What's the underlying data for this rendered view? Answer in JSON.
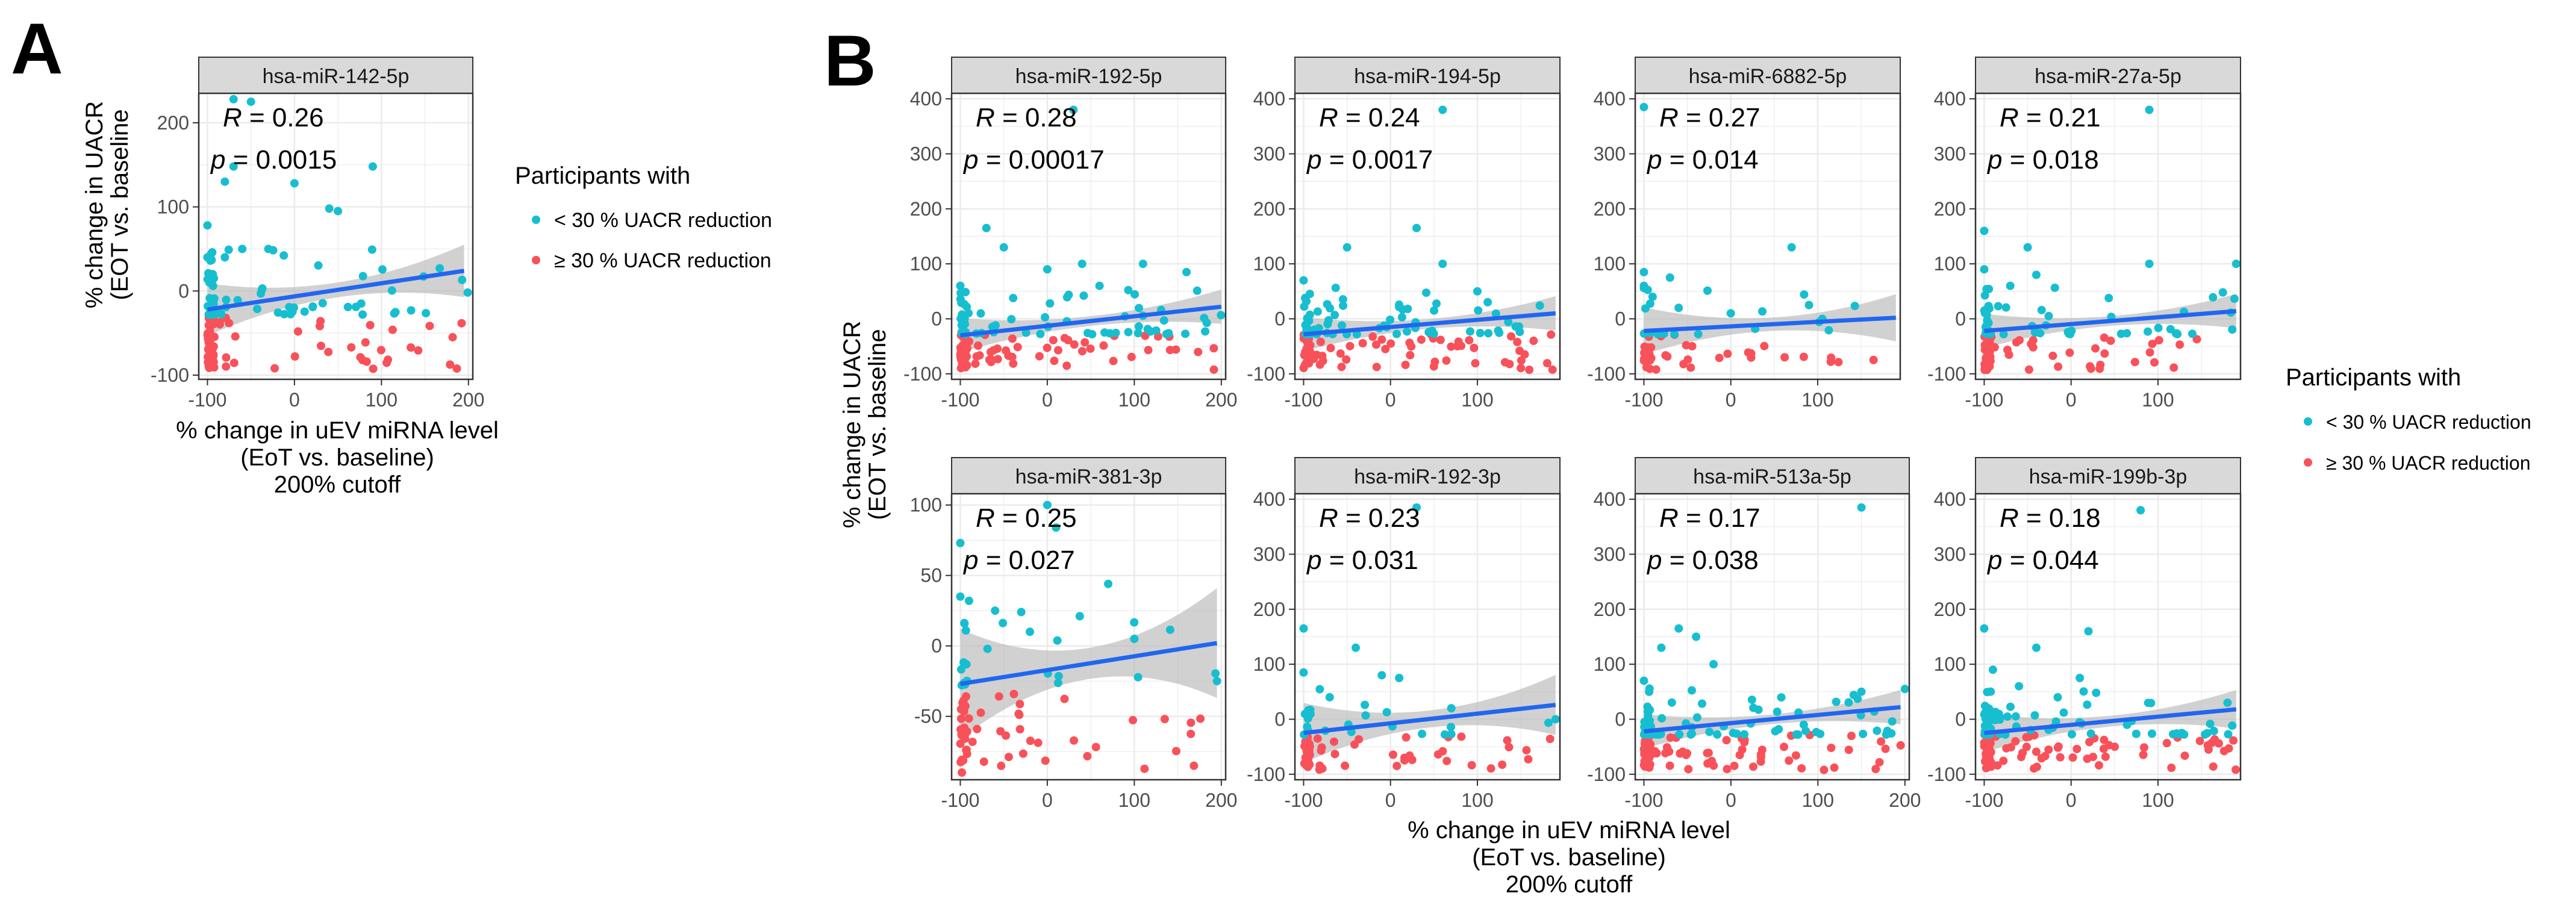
{
  "panel_labels": [
    "A",
    "B"
  ],
  "colors": {
    "low_reduction": "#17BECF",
    "high_reduction": "#F8515A",
    "fit_line": "#2166F0",
    "ci_band": "#B8B8B8",
    "strip_bg": "#D9D9D9",
    "grid": "#EBEBEB"
  },
  "panel_a": {
    "ylabel": "% change in UACR\n(EOT vs. baseline",
    "xlabel": "% change in uEV miRNA level\n(EoT vs. baseline)\n200% cutoff",
    "legend": {
      "title": "Participants with",
      "items": [
        "< 30 % UACR reduction",
        "≥ 30 % UACR reduction"
      ]
    }
  },
  "panel_b": {
    "ylabel": "% change in UACR\n(EOT vs. baseline",
    "xlabel": "% change in uEV miRNA level\n(EoT vs. baseline)\n200% cutoff",
    "legend": {
      "title": "Participants with",
      "items": [
        "< 30 % UACR reduction",
        "≥ 30 % UACR reduction"
      ]
    }
  },
  "chart_data": [
    {
      "type": "scatter",
      "panel": "A",
      "title": "hsa-miR-142-5p",
      "r_label": "R",
      "r_value": "= 0.26",
      "p_label": "p",
      "p_value": "= 0.0015",
      "xlim": [
        -110,
        205
      ],
      "ylim": [
        -105,
        235
      ],
      "xticks": [
        -100,
        0,
        100,
        200
      ],
      "yticks": [
        -100,
        0,
        100,
        200
      ],
      "fit": {
        "x": [
          -100,
          195
        ],
        "y": [
          -22,
          24
        ],
        "ci": 16
      },
      "n_low": 80,
      "n_high": 75,
      "low_points": [
        [
          -70,
          228
        ],
        [
          -50,
          225
        ],
        [
          -80,
          130
        ],
        [
          -70,
          148
        ],
        [
          -100,
          78
        ],
        [
          0,
          128
        ],
        [
          90,
          148
        ],
        [
          40,
          98
        ],
        [
          50,
          95
        ],
        [
          -100,
          40
        ],
        [
          -80,
          40
        ],
        [
          -60,
          50
        ],
        [
          -30,
          50
        ]
      ]
    },
    {
      "type": "scatter",
      "panel": "B",
      "title": "hsa-miR-192-5p",
      "r_label": "R",
      "r_value": "= 0.28",
      "p_label": "p",
      "p_value": "= 0.00017",
      "xlim": [
        -110,
        205
      ],
      "ylim": [
        -110,
        410
      ],
      "xticks": [
        -100,
        0,
        100,
        200
      ],
      "yticks": [
        -100,
        0,
        100,
        200,
        300,
        400
      ],
      "fit": {
        "x": [
          -100,
          200
        ],
        "y": [
          -30,
          22
        ],
        "ci": 16
      },
      "n_low": 75,
      "n_high": 80,
      "low_points": [
        [
          30,
          380
        ],
        [
          -70,
          165
        ],
        [
          -50,
          130
        ],
        [
          0,
          90
        ],
        [
          40,
          100
        ],
        [
          110,
          100
        ],
        [
          -100,
          60
        ],
        [
          60,
          60
        ],
        [
          160,
          85
        ]
      ]
    },
    {
      "type": "scatter",
      "panel": "B",
      "title": "hsa-miR-194-5p",
      "r_label": "R",
      "r_value": "= 0.24",
      "p_label": "p",
      "p_value": "= 0.0017",
      "xlim": [
        -110,
        195
      ],
      "ylim": [
        -110,
        410
      ],
      "xticks": [
        -100,
        0,
        100
      ],
      "yticks": [
        -100,
        0,
        100,
        200,
        300,
        400
      ],
      "fit": {
        "x": [
          -100,
          190
        ],
        "y": [
          -28,
          10
        ],
        "ci": 16
      },
      "n_low": 75,
      "n_high": 80,
      "low_points": [
        [
          60,
          380
        ],
        [
          30,
          165
        ],
        [
          -50,
          130
        ],
        [
          60,
          100
        ],
        [
          -100,
          70
        ],
        [
          100,
          50
        ]
      ]
    },
    {
      "type": "scatter",
      "panel": "B",
      "title": "hsa-miR-6882-5p",
      "r_label": "R",
      "r_value": "= 0.27",
      "p_label": "p",
      "p_value": "= 0.014",
      "xlim": [
        -110,
        195
      ],
      "ylim": [
        -110,
        410
      ],
      "xticks": [
        -100,
        0,
        100
      ],
      "yticks": [
        -100,
        0,
        100,
        200,
        300,
        400
      ],
      "fit": {
        "x": [
          -100,
          190
        ],
        "y": [
          -22,
          2
        ],
        "ci": 22
      },
      "n_low": 28,
      "n_high": 38,
      "low_points": [
        [
          -100,
          385
        ],
        [
          -100,
          85
        ],
        [
          -90,
          40
        ],
        [
          -70,
          75
        ],
        [
          70,
          130
        ],
        [
          -100,
          60
        ],
        [
          -60,
          20
        ],
        [
          0,
          10
        ],
        [
          90,
          25
        ]
      ]
    },
    {
      "type": "scatter",
      "panel": "B",
      "title": "hsa-miR-27a-5p",
      "r_label": "R",
      "r_value": "= 0.21",
      "p_label": "p",
      "p_value": "= 0.018",
      "xlim": [
        -110,
        195
      ],
      "ylim": [
        -110,
        410
      ],
      "xticks": [
        -100,
        0,
        100
      ],
      "yticks": [
        -100,
        0,
        100,
        200,
        300,
        400
      ],
      "fit": {
        "x": [
          -100,
          190
        ],
        "y": [
          -22,
          14
        ],
        "ci": 16
      },
      "n_low": 65,
      "n_high": 60,
      "low_points": [
        [
          90,
          380
        ],
        [
          -100,
          160
        ],
        [
          -50,
          130
        ],
        [
          -100,
          90
        ],
        [
          -40,
          80
        ],
        [
          90,
          100
        ],
        [
          190,
          100
        ],
        [
          -70,
          60
        ]
      ]
    },
    {
      "type": "scatter",
      "panel": "B",
      "title": "hsa-miR-381-3p",
      "r_label": "R",
      "r_value": "= 0.25",
      "p_label": "p",
      "p_value": "= 0.027",
      "xlim": [
        -110,
        205
      ],
      "ylim": [
        -95,
        108
      ],
      "xticks": [
        -100,
        0,
        100,
        200
      ],
      "yticks": [
        -50,
        0,
        50,
        100
      ],
      "fit": {
        "x": [
          -100,
          195
        ],
        "y": [
          -27,
          2
        ],
        "ci": 20
      },
      "n_low": 32,
      "n_high": 55,
      "low_points": [
        [
          0,
          100
        ],
        [
          10,
          84
        ],
        [
          -100,
          73
        ],
        [
          70,
          44
        ],
        [
          -100,
          35
        ],
        [
          -90,
          32
        ],
        [
          -60,
          25
        ],
        [
          -30,
          24
        ],
        [
          100,
          5
        ],
        [
          195,
          -25
        ],
        [
          -20,
          10
        ]
      ]
    },
    {
      "type": "scatter",
      "panel": "B",
      "title": "hsa-miR-192-3p",
      "r_label": "R",
      "r_value": "= 0.23",
      "p_label": "p",
      "p_value": "= 0.031",
      "xlim": [
        -110,
        195
      ],
      "ylim": [
        -110,
        410
      ],
      "xticks": [
        -100,
        0,
        100
      ],
      "yticks": [
        -100,
        0,
        100,
        200,
        300,
        400
      ],
      "fit": {
        "x": [
          -100,
          190
        ],
        "y": [
          -25,
          26
        ],
        "ci": 28
      },
      "n_low": 30,
      "n_high": 55,
      "low_points": [
        [
          30,
          385
        ],
        [
          -100,
          165
        ],
        [
          -40,
          130
        ],
        [
          -10,
          80
        ],
        [
          10,
          75
        ],
        [
          -100,
          85
        ],
        [
          -70,
          40
        ],
        [
          70,
          20
        ],
        [
          190,
          0
        ]
      ]
    },
    {
      "type": "scatter",
      "panel": "B",
      "title": "hsa-miR-513a-5p",
      "r_label": "R",
      "r_value": "= 0.17",
      "p_label": "p",
      "p_value": "= 0.038",
      "xlim": [
        -110,
        205
      ],
      "ylim": [
        -110,
        410
      ],
      "xticks": [
        -100,
        0,
        100,
        200
      ],
      "yticks": [
        -100,
        0,
        100,
        200,
        300,
        400
      ],
      "fit": {
        "x": [
          -100,
          195
        ],
        "y": [
          -22,
          22
        ],
        "ci": 16
      },
      "n_low": 80,
      "n_high": 90,
      "low_points": [
        [
          150,
          385
        ],
        [
          -60,
          165
        ],
        [
          -40,
          150
        ],
        [
          -80,
          130
        ],
        [
          -20,
          100
        ],
        [
          -100,
          70
        ],
        [
          200,
          55
        ],
        [
          150,
          50
        ]
      ]
    },
    {
      "type": "scatter",
      "panel": "B",
      "title": "hsa-miR-199b-3p",
      "r_label": "R",
      "r_value": "= 0.18",
      "p_label": "p",
      "p_value": "= 0.044",
      "xlim": [
        -110,
        195
      ],
      "ylim": [
        -110,
        410
      ],
      "xticks": [
        -100,
        0,
        100
      ],
      "yticks": [
        -100,
        0,
        100,
        200,
        300,
        400
      ],
      "fit": {
        "x": [
          -100,
          190
        ],
        "y": [
          -25,
          18
        ],
        "ci": 18
      },
      "n_low": 75,
      "n_high": 85,
      "low_points": [
        [
          80,
          380
        ],
        [
          -100,
          165
        ],
        [
          -40,
          130
        ],
        [
          20,
          160
        ],
        [
          -90,
          90
        ],
        [
          -60,
          60
        ],
        [
          10,
          75
        ],
        [
          180,
          30
        ]
      ]
    }
  ]
}
